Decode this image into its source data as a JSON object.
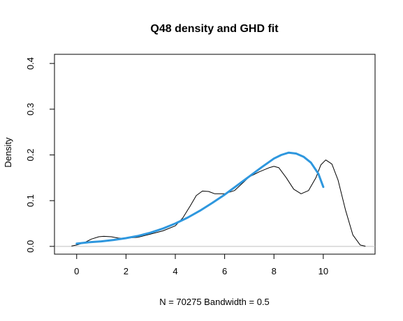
{
  "chart_data": {
    "type": "line",
    "title": "Q48 density and GHD fit",
    "xlabel": "N = 70275   Bandwidth = 0.5",
    "ylabel": "Density",
    "xlim": [
      -0.9,
      12.1
    ],
    "ylim": [
      -0.017,
      0.42
    ],
    "x_ticks": [
      0,
      2,
      4,
      6,
      8,
      10
    ],
    "y_ticks": [
      0.0,
      0.1,
      0.2,
      0.3,
      0.4
    ],
    "x_tick_labels": [
      "0",
      "2",
      "4",
      "6",
      "8",
      "10"
    ],
    "y_tick_labels": [
      "0.0",
      "0.1",
      "0.2",
      "0.3",
      "0.4"
    ],
    "grid": false,
    "baseline": 0,
    "series": [
      {
        "color": "#000000",
        "line_width": 1,
        "points": [
          [
            -0.2,
            0.001
          ],
          [
            0.0,
            0.003
          ],
          [
            0.3,
            0.008
          ],
          [
            0.6,
            0.016
          ],
          [
            0.9,
            0.021
          ],
          [
            1.1,
            0.022
          ],
          [
            1.4,
            0.021
          ],
          [
            1.7,
            0.018
          ],
          [
            2.0,
            0.018
          ],
          [
            2.5,
            0.02
          ],
          [
            3.0,
            0.027
          ],
          [
            3.5,
            0.034
          ],
          [
            4.0,
            0.045
          ],
          [
            4.3,
            0.062
          ],
          [
            4.6,
            0.088
          ],
          [
            4.85,
            0.111
          ],
          [
            5.1,
            0.121
          ],
          [
            5.35,
            0.12
          ],
          [
            5.6,
            0.115
          ],
          [
            6.0,
            0.115
          ],
          [
            6.4,
            0.122
          ],
          [
            6.7,
            0.137
          ],
          [
            7.0,
            0.152
          ],
          [
            7.4,
            0.163
          ],
          [
            7.8,
            0.172
          ],
          [
            8.0,
            0.175
          ],
          [
            8.2,
            0.172
          ],
          [
            8.5,
            0.15
          ],
          [
            8.8,
            0.125
          ],
          [
            9.1,
            0.115
          ],
          [
            9.4,
            0.122
          ],
          [
            9.7,
            0.15
          ],
          [
            9.9,
            0.178
          ],
          [
            10.1,
            0.189
          ],
          [
            10.35,
            0.18
          ],
          [
            10.6,
            0.145
          ],
          [
            10.9,
            0.08
          ],
          [
            11.2,
            0.025
          ],
          [
            11.5,
            0.003
          ],
          [
            11.7,
            0.0005
          ]
        ]
      },
      {
        "color": "#2e97de",
        "line_width": 3,
        "points": [
          [
            0.0,
            0.006
          ],
          [
            0.5,
            0.009
          ],
          [
            1.0,
            0.011
          ],
          [
            1.5,
            0.014
          ],
          [
            2.0,
            0.018
          ],
          [
            2.5,
            0.023
          ],
          [
            3.0,
            0.03
          ],
          [
            3.5,
            0.039
          ],
          [
            4.0,
            0.05
          ],
          [
            4.5,
            0.063
          ],
          [
            5.0,
            0.078
          ],
          [
            5.5,
            0.095
          ],
          [
            6.0,
            0.113
          ],
          [
            6.5,
            0.133
          ],
          [
            7.0,
            0.153
          ],
          [
            7.5,
            0.173
          ],
          [
            8.0,
            0.192
          ],
          [
            8.3,
            0.2
          ],
          [
            8.6,
            0.205
          ],
          [
            8.9,
            0.203
          ],
          [
            9.2,
            0.196
          ],
          [
            9.5,
            0.183
          ],
          [
            9.8,
            0.159
          ],
          [
            10.0,
            0.13
          ]
        ]
      }
    ]
  }
}
